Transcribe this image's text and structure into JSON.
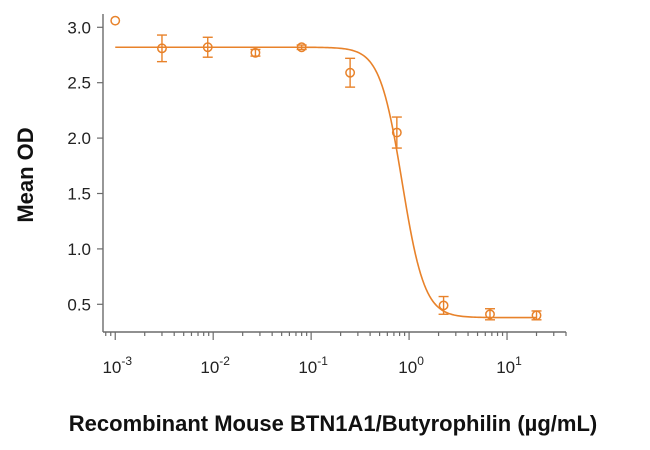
{
  "chart_data": {
    "type": "scatter",
    "xscale": "log",
    "xlim": [
      0.00075,
      40
    ],
    "ylim": [
      0.25,
      3.12
    ],
    "yticks": [
      0.5,
      1.0,
      1.5,
      2.0,
      2.5,
      3.0
    ],
    "ytick_labels": [
      "0.5",
      "1.0",
      "1.5",
      "2.0",
      "2.5",
      "3.0"
    ],
    "xticks": [
      {
        "value": 0.001,
        "base": "10",
        "exp": "-3"
      },
      {
        "value": 0.01,
        "base": "10",
        "exp": "-2"
      },
      {
        "value": 0.1,
        "base": "10",
        "exp": "-1"
      },
      {
        "value": 1,
        "base": "10",
        "exp": "0"
      },
      {
        "value": 10,
        "base": "10",
        "exp": "1"
      }
    ],
    "xlabel": "Recombinant Mouse BTN1A1/Butyrophilin (µg/mL)",
    "ylabel": "Mean OD",
    "color": "#e8822a",
    "series": [
      {
        "x": [
          0.001,
          0.003,
          0.0088,
          0.027,
          0.08,
          0.25,
          0.75,
          2.25,
          6.7,
          20
        ],
        "y": [
          3.06,
          2.81,
          2.82,
          2.77,
          2.82,
          2.59,
          2.05,
          0.49,
          0.41,
          0.4
        ],
        "err": [
          0,
          0.12,
          0.09,
          0.03,
          0.02,
          0.13,
          0.14,
          0.08,
          0.05,
          0.04
        ]
      }
    ],
    "fit": {
      "top": 2.82,
      "bottom": 0.38,
      "ec50": 0.85,
      "hill": 3.8
    },
    "grid": false,
    "legend": "none"
  }
}
